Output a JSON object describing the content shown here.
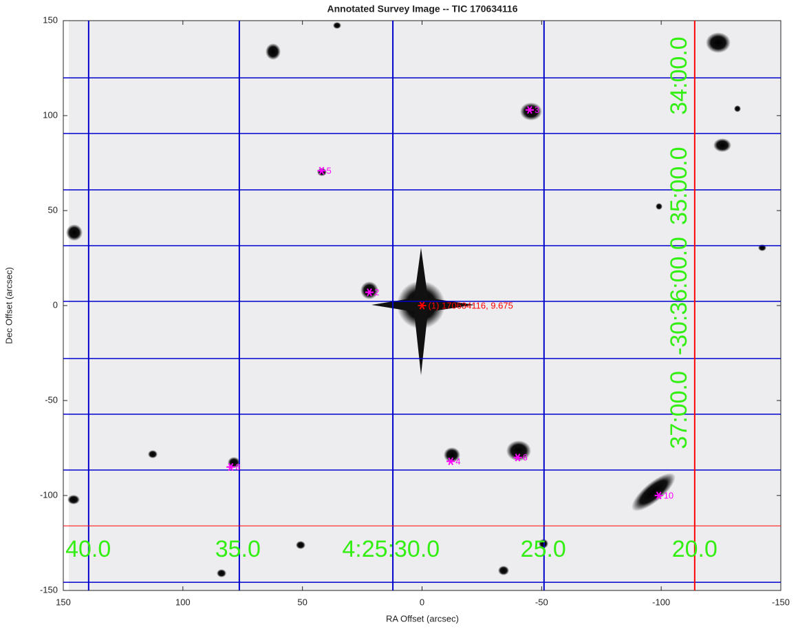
{
  "chart_data": {
    "type": "scatter",
    "title": "Annotated Survey Image -- TIC 170634116",
    "xlabel": "RA Offset (arcsec)",
    "ylabel": "Dec Offset (arcsec)",
    "xlim": [
      150,
      -150
    ],
    "ylim": [
      -150,
      150
    ],
    "xticks": [
      150,
      100,
      50,
      0,
      -50,
      -100,
      -150
    ],
    "yticks": [
      -150,
      -100,
      -50,
      0,
      50,
      100,
      150
    ],
    "target": {
      "x": 0,
      "y": 0,
      "label": "(1) 170634116, 9.675",
      "color": "#ff0000"
    },
    "points": {
      "x": [
        22,
        -45,
        -12,
        42,
        -40,
        80,
        -99
      ],
      "y": [
        7,
        103,
        -82,
        71,
        -80,
        -85,
        -100
      ],
      "labels": [
        "2",
        "3",
        "4",
        "5",
        "6",
        "8",
        "10"
      ],
      "color": "#ff00ff"
    },
    "ra_grid": {
      "color": "#0000cc",
      "lines": [
        139.4,
        76.4,
        12.2,
        -51.0
      ],
      "labels": [
        {
          "value": 139.6,
          "label": "40.0"
        },
        {
          "value": 77,
          "label": "35.0"
        },
        {
          "value": 13,
          "label": "4:25:30.0"
        },
        {
          "value": -50.7,
          "label": "25.0"
        },
        {
          "value": -114,
          "label": "20.0"
        }
      ]
    },
    "dec_grid": {
      "color": "#0000cc",
      "lines": [
        119.9,
        90.6,
        60.9,
        31.5,
        2.2,
        -27.9,
        -57.2,
        -86.6,
        -145.7
      ],
      "labels": [
        {
          "value": 121,
          "label": "34:00.0"
        },
        {
          "value": 63,
          "label": "35:00.0"
        },
        {
          "value": 5,
          "label": "-30:36:00.0"
        },
        {
          "value": -55,
          "label": "37:00.0"
        }
      ]
    },
    "grid_label_color": "#33ee11",
    "crosshair": {
      "x": -114,
      "y": -116,
      "color": "#ff0000"
    }
  }
}
